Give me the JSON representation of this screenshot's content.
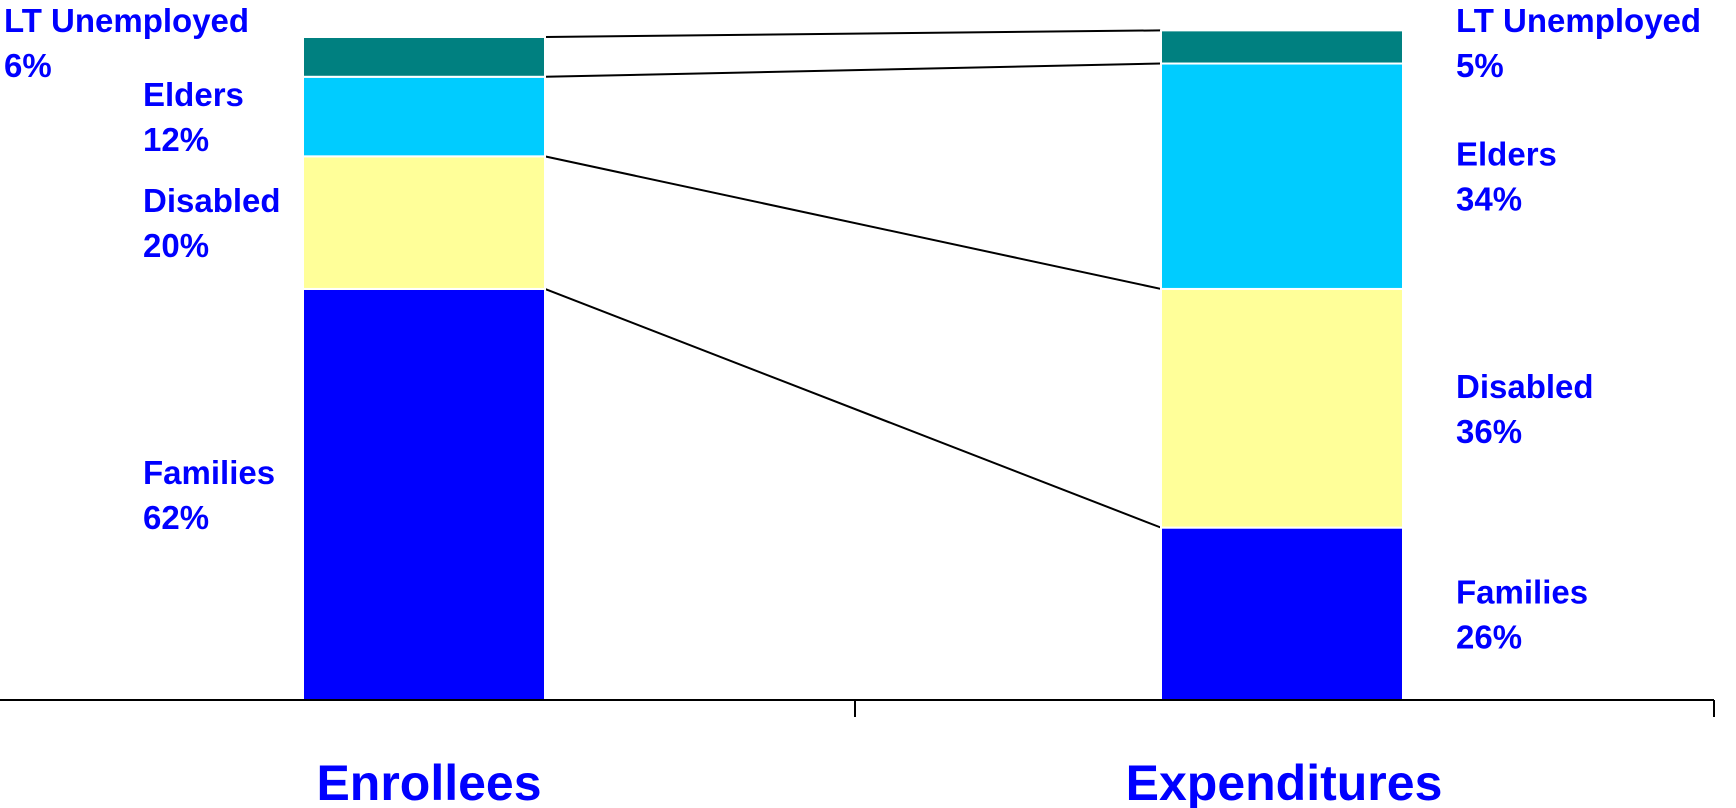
{
  "chart_data": {
    "type": "bar",
    "stacked": true,
    "normalized_percent": true,
    "categories": [
      "Enrollees",
      "Expenditures"
    ],
    "series": [
      {
        "name": "Families",
        "values": [
          62,
          26
        ],
        "labels": [
          "62%",
          "26%"
        ]
      },
      {
        "name": "Disabled",
        "values": [
          20,
          36
        ],
        "labels": [
          "20%",
          "36%"
        ]
      },
      {
        "name": "Elders",
        "values": [
          12,
          34
        ],
        "labels": [
          "12%",
          "34%"
        ]
      },
      {
        "name": "LT Unemployed",
        "values": [
          6,
          5
        ],
        "labels": [
          "6%",
          "5%"
        ]
      }
    ],
    "colors": {
      "Families": "#0000ff",
      "Disabled": "#ffff99",
      "Elders": "#00ccff",
      "LT Unemployed": "#008080",
      "label_text": "#0000ff",
      "category_text": "#0000ff",
      "axis": "#000000",
      "connector": "#000000"
    },
    "connector_lines": true,
    "ylim": [
      0,
      100
    ],
    "grid": false,
    "legend": "none",
    "title": "",
    "xlabel": "",
    "ylabel": ""
  }
}
